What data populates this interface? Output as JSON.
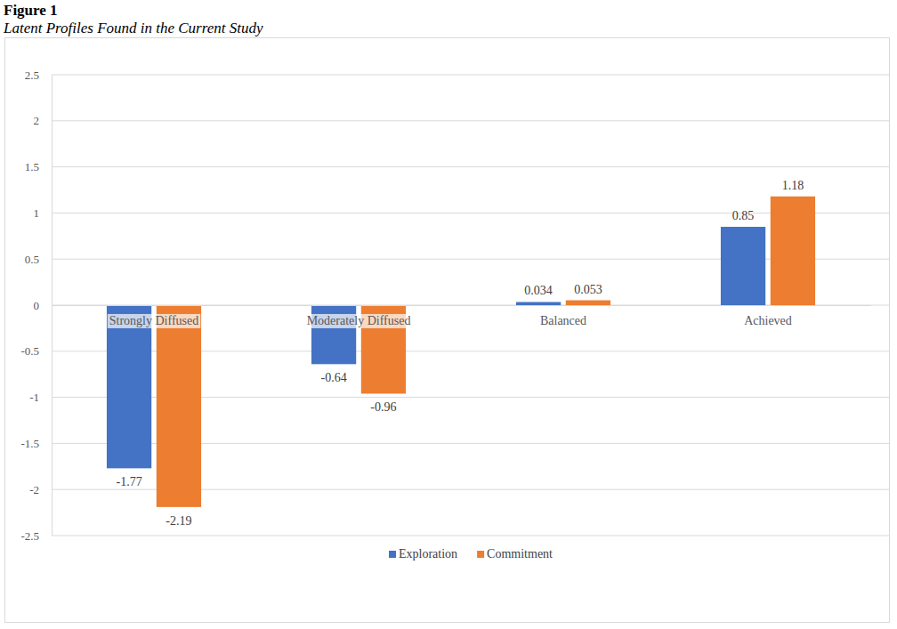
{
  "chart_data": {
    "type": "bar",
    "title": "Figure 1",
    "subtitle": "Latent Profiles Found in the Current Study",
    "categories": [
      "Strongly Diffused",
      "Moderately Diffused",
      "Balanced",
      "Achieved"
    ],
    "series": [
      {
        "name": "Exploration",
        "color": "#4472c4",
        "values": [
          -1.77,
          -0.64,
          0.034,
          0.85
        ]
      },
      {
        "name": "Commitment",
        "color": "#ed7d31",
        "values": [
          -2.19,
          -0.96,
          0.053,
          1.18
        ]
      }
    ],
    "ylim": [
      -2.5,
      2.5
    ],
    "yticks": [
      -2.5,
      -2,
      -1.5,
      -1,
      -0.5,
      0,
      0.5,
      1,
      1.5,
      2,
      2.5
    ],
    "grid": true,
    "legend": "bottom",
    "data_labels": true
  }
}
